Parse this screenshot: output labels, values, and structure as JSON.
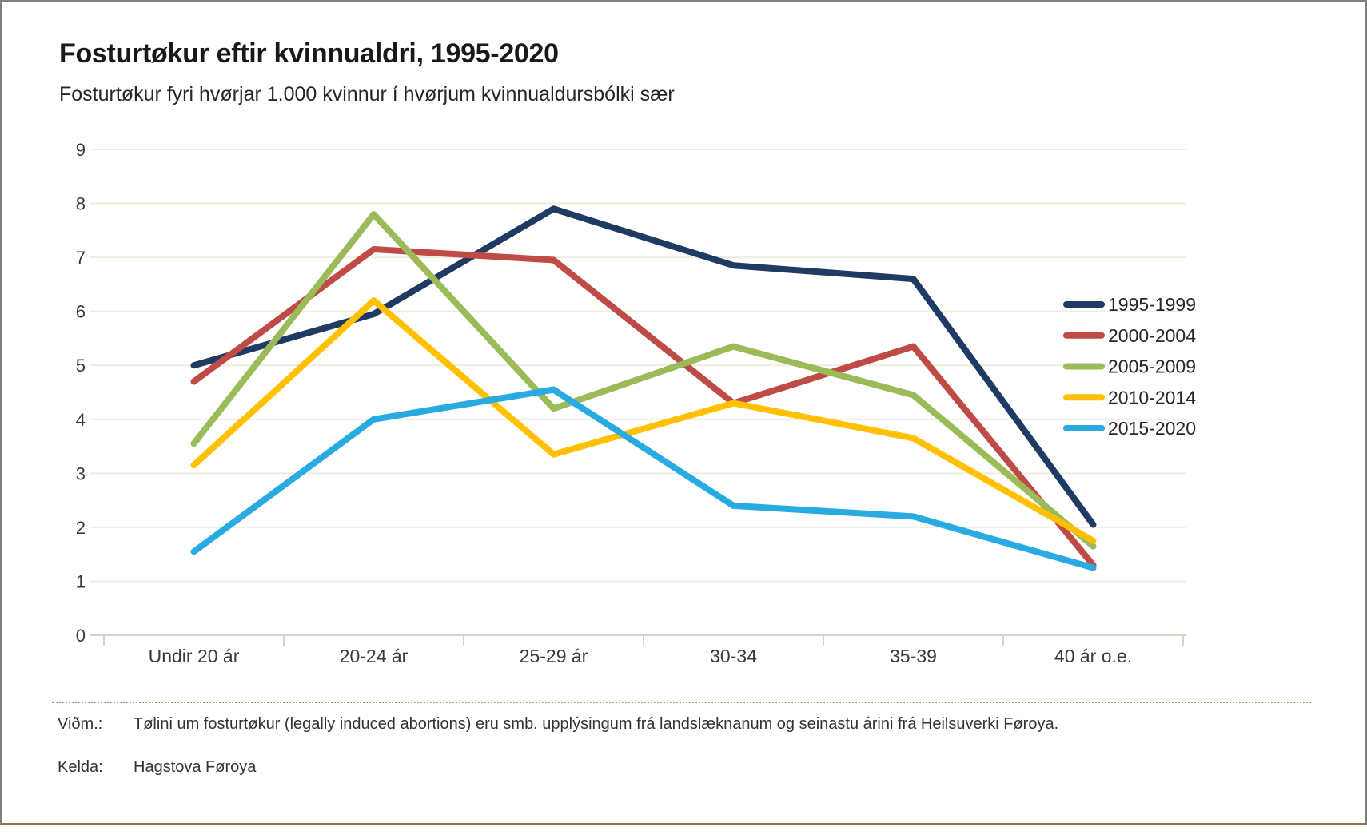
{
  "header": {
    "title": "Fosturtøkur eftir kvinnualdri, 1995-2020",
    "subtitle": "Fosturtøkur fyri hvørjar 1.000 kvinnur í hvørjum kvinnualdursbólki sær"
  },
  "chart_data": {
    "type": "line",
    "categories": [
      "Undir 20 ár",
      "20-24 ár",
      "25-29 ár",
      "30-34",
      "35-39",
      "40 ár o.e."
    ],
    "series": [
      {
        "name": "1995-1999",
        "color": "#1f3b63",
        "values": [
          5.0,
          5.95,
          7.9,
          6.85,
          6.6,
          2.05
        ]
      },
      {
        "name": "2000-2004",
        "color": "#bf4b47",
        "values": [
          4.7,
          7.15,
          6.95,
          4.3,
          5.35,
          1.3
        ]
      },
      {
        "name": "2005-2009",
        "color": "#9bbb59",
        "values": [
          3.55,
          7.8,
          4.2,
          5.35,
          4.45,
          1.65
        ]
      },
      {
        "name": "2010-2014",
        "color": "#ffc000",
        "values": [
          3.15,
          6.2,
          3.35,
          4.3,
          3.65,
          1.75
        ]
      },
      {
        "name": "2015-2020",
        "color": "#29abe2",
        "values": [
          1.55,
          4.0,
          4.55,
          2.4,
          2.2,
          1.25
        ]
      }
    ],
    "ylim": [
      0,
      9
    ],
    "ytick_step": 1,
    "yticks": [
      0,
      1,
      2,
      3,
      4,
      5,
      6,
      7,
      8,
      9
    ],
    "grid": true,
    "legend_position": "right",
    "title": "Fosturtøkur eftir kvinnualdri, 1995-2020",
    "xlabel": "",
    "ylabel": ""
  },
  "footer": {
    "note_label": "Viðm.:",
    "note_text": "Tølini um fosturtøkur (legally induced abortions) eru smb. upplýsingum frá landslæknanum og seinastu árini frá Heilsuverki Føroya.",
    "source_label": "Kelda:",
    "source_text": "Hagstova Føroya"
  },
  "colors": {
    "gridline": "#efece1",
    "axis_line": "#d8d3c6",
    "tick_label": "#3a3a3a",
    "legend_text": "#262626",
    "card_border": "#7f7f7f",
    "bottom_accent": "#86774a",
    "divider": "#a2966e"
  }
}
